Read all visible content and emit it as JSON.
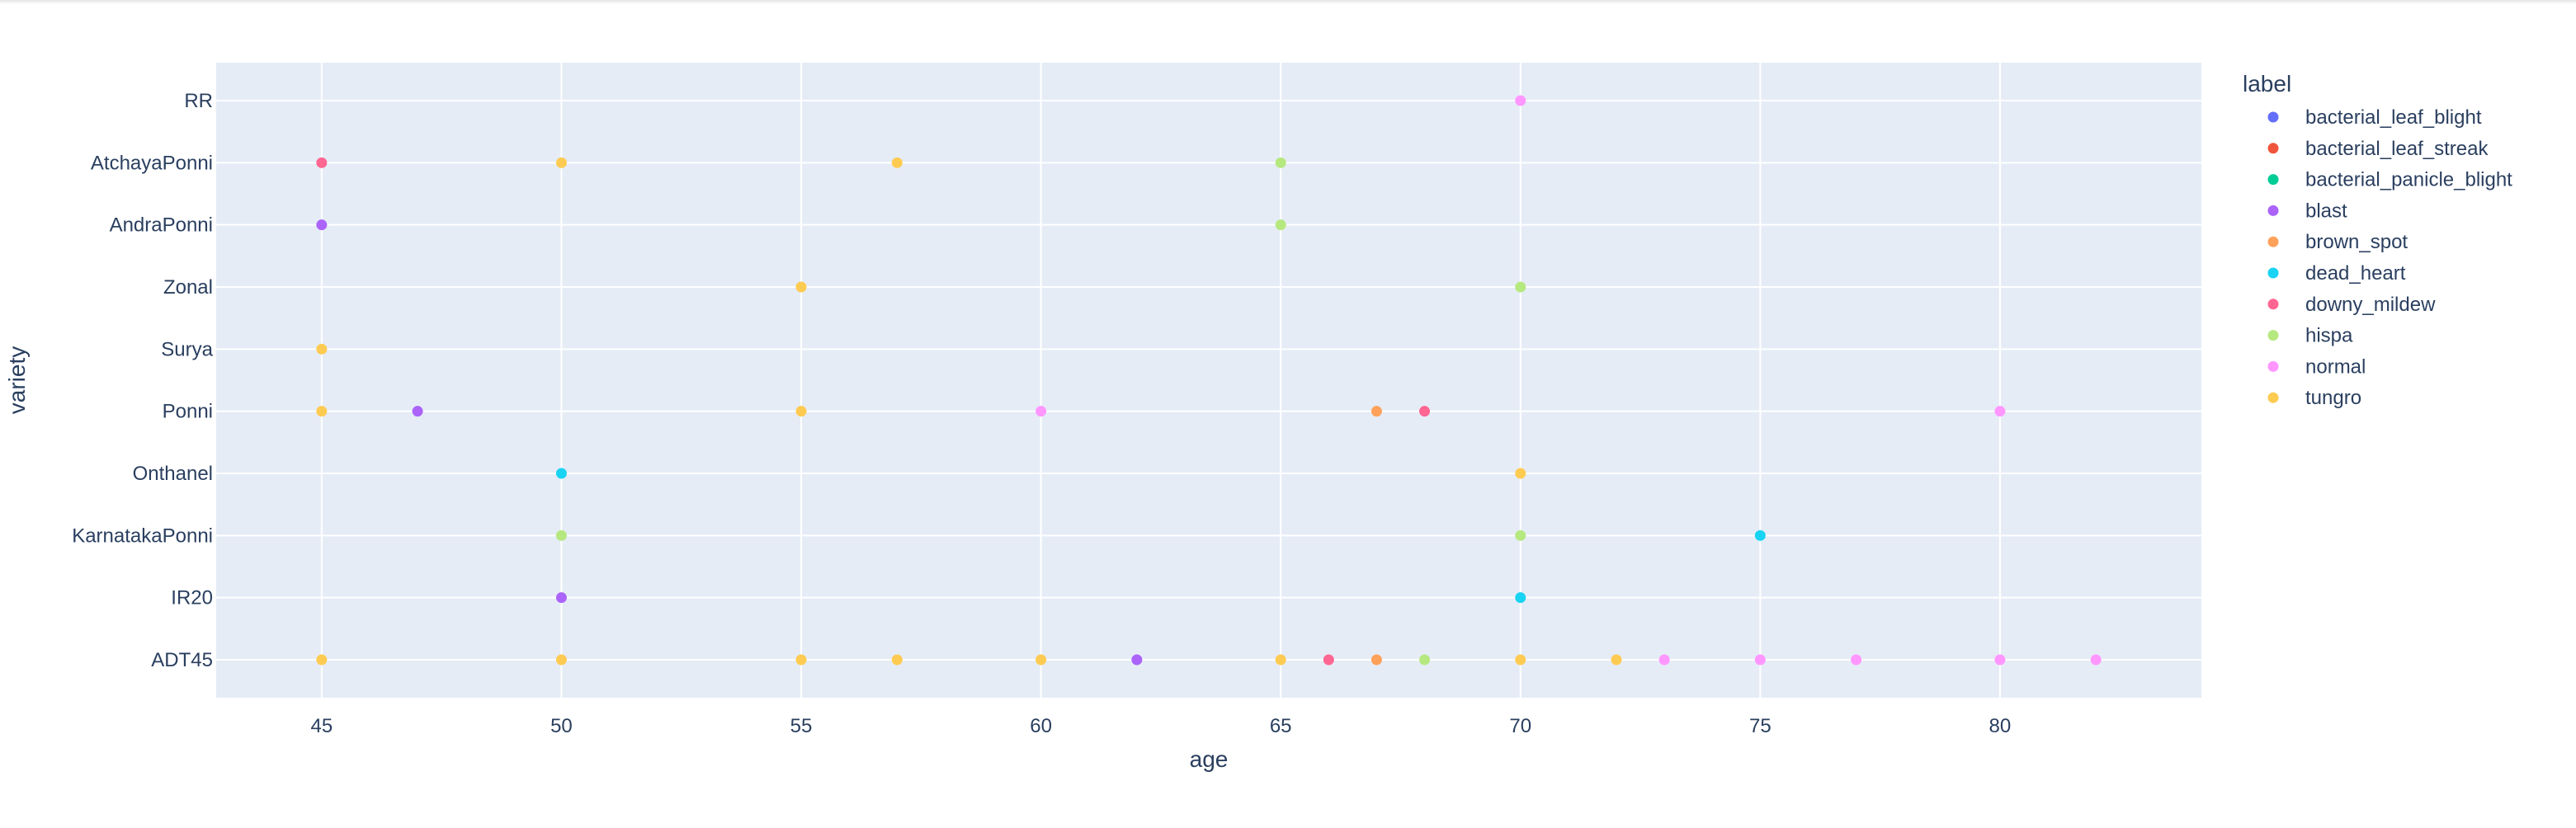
{
  "chart_data": {
    "type": "scatter",
    "xlabel": "age",
    "ylabel": "variety",
    "xlim": [
      42.8,
      84.2
    ],
    "xticks": [
      45,
      50,
      55,
      60,
      65,
      70,
      75,
      80
    ],
    "categories_y": [
      "ADT45",
      "IR20",
      "KarnatakaPonni",
      "Onthanel",
      "Ponni",
      "Surya",
      "Zonal",
      "AndraPonni",
      "AtchayaPonni",
      "RR"
    ],
    "grid": true,
    "plot_background": "#e5ecf6",
    "legend": {
      "title": "label",
      "position": "right"
    },
    "series": [
      {
        "name": "bacterial_leaf_blight",
        "color": "#636efa",
        "points": []
      },
      {
        "name": "bacterial_leaf_streak",
        "color": "#EF553B",
        "points": []
      },
      {
        "name": "bacterial_panicle_blight",
        "color": "#00cc96",
        "points": []
      },
      {
        "name": "blast",
        "color": "#ab63fa",
        "points": [
          {
            "x": 45,
            "y": "AndraPonni"
          },
          {
            "x": 47,
            "y": "Ponni"
          },
          {
            "x": 50,
            "y": "IR20"
          },
          {
            "x": 62,
            "y": "ADT45"
          }
        ]
      },
      {
        "name": "brown_spot",
        "color": "#FFA15A",
        "points": [
          {
            "x": 67,
            "y": "Ponni"
          },
          {
            "x": 67,
            "y": "ADT45"
          }
        ]
      },
      {
        "name": "dead_heart",
        "color": "#19d3f3",
        "points": [
          {
            "x": 50,
            "y": "Onthanel"
          },
          {
            "x": 75,
            "y": "KarnatakaPonni"
          },
          {
            "x": 70,
            "y": "IR20"
          }
        ]
      },
      {
        "name": "downy_mildew",
        "color": "#FF6692",
        "points": [
          {
            "x": 45,
            "y": "AtchayaPonni"
          },
          {
            "x": 68,
            "y": "Ponni"
          },
          {
            "x": 66,
            "y": "ADT45"
          }
        ]
      },
      {
        "name": "hispa",
        "color": "#B6E880",
        "points": [
          {
            "x": 65,
            "y": "AtchayaPonni"
          },
          {
            "x": 65,
            "y": "AndraPonni"
          },
          {
            "x": 70,
            "y": "Zonal"
          },
          {
            "x": 50,
            "y": "KarnatakaPonni"
          },
          {
            "x": 70,
            "y": "KarnatakaPonni"
          },
          {
            "x": 68,
            "y": "ADT45"
          }
        ]
      },
      {
        "name": "normal",
        "color": "#FF97FF",
        "points": [
          {
            "x": 70,
            "y": "RR"
          },
          {
            "x": 60,
            "y": "Ponni"
          },
          {
            "x": 80,
            "y": "Ponni"
          },
          {
            "x": 73,
            "y": "ADT45"
          },
          {
            "x": 75,
            "y": "ADT45"
          },
          {
            "x": 77,
            "y": "ADT45"
          },
          {
            "x": 80,
            "y": "ADT45"
          },
          {
            "x": 82,
            "y": "ADT45"
          }
        ]
      },
      {
        "name": "tungro",
        "color": "#FECB52",
        "points": [
          {
            "x": 50,
            "y": "AtchayaPonni"
          },
          {
            "x": 57,
            "y": "AtchayaPonni"
          },
          {
            "x": 55,
            "y": "Zonal"
          },
          {
            "x": 45,
            "y": "Surya"
          },
          {
            "x": 45,
            "y": "Ponni"
          },
          {
            "x": 55,
            "y": "Ponni"
          },
          {
            "x": 70,
            "y": "Onthanel"
          },
          {
            "x": 45,
            "y": "ADT45"
          },
          {
            "x": 50,
            "y": "ADT45"
          },
          {
            "x": 55,
            "y": "ADT45"
          },
          {
            "x": 57,
            "y": "ADT45"
          },
          {
            "x": 60,
            "y": "ADT45"
          },
          {
            "x": 65,
            "y": "ADT45"
          },
          {
            "x": 70,
            "y": "ADT45"
          },
          {
            "x": 72,
            "y": "ADT45"
          }
        ]
      }
    ]
  }
}
